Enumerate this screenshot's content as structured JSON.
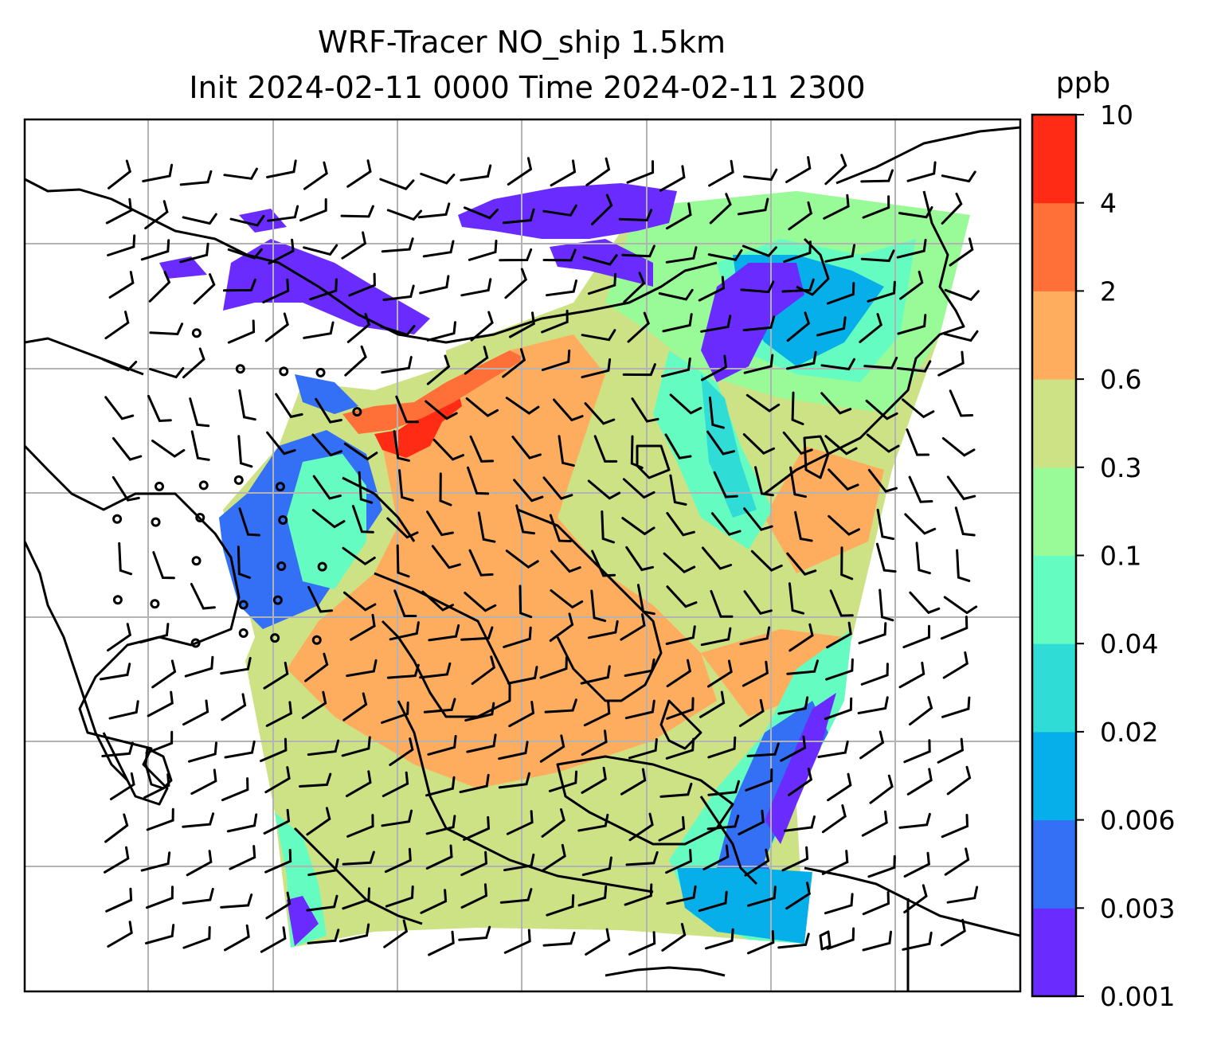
{
  "title_line1": "WRF-Tracer NO_ship 1.5km",
  "title_line2": "Init 2024-02-11 0000 Time 2024-02-11 2300",
  "colorbar": {
    "unit": "ppb",
    "tick_labels": [
      "0.001",
      "0.003",
      "0.006",
      "0.02",
      "0.04",
      "0.1",
      "0.3",
      "0.6",
      "2",
      "4",
      "10"
    ],
    "colors": [
      "#6a2bff",
      "#3370f5",
      "#06aeea",
      "#2fdcd6",
      "#65fcc1",
      "#99fb98",
      "#cde285",
      "#feac5d",
      "#ff6f38",
      "#ff2b14"
    ]
  },
  "map": {
    "land_background": "#ffffff",
    "gridline_color": "#b3b3b3",
    "coastline_color": "#000000",
    "overlay": "wind barbs"
  }
}
